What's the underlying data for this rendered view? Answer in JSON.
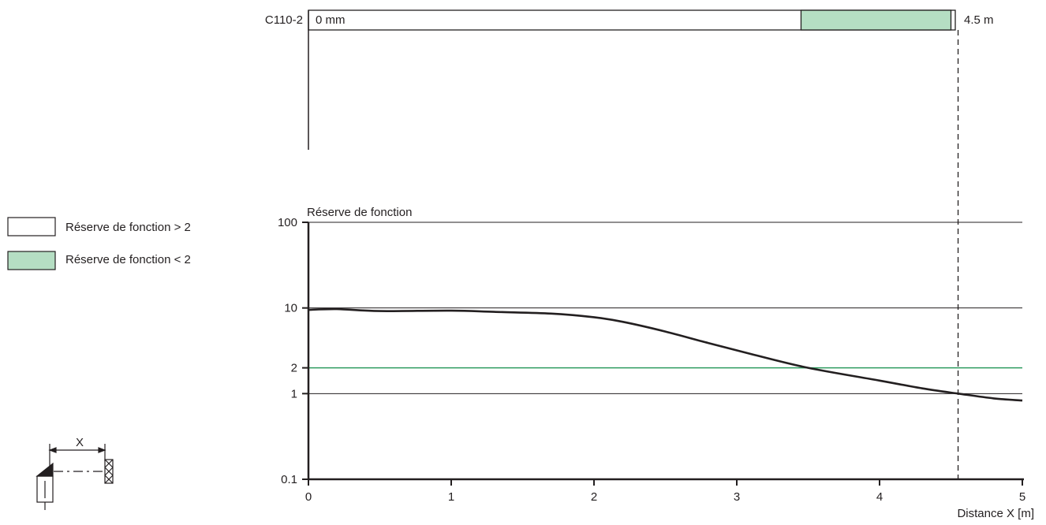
{
  "range_bar": {
    "label": "C110-2",
    "start_label": "0 mm",
    "end_label": "4.5 m",
    "full_range_m": 4.5,
    "reduced_from_m": 3.45
  },
  "legend": [
    {
      "label": "Réserve de fonction > 2",
      "color": "#ffffff"
    },
    {
      "label": "Réserve de fonction < 2",
      "color": "#b5dec3"
    }
  ],
  "sketch": {
    "distance_label": "X"
  },
  "chart_data": {
    "type": "line",
    "title": "",
    "ylabel": "Réserve de fonction",
    "xlabel": "Distance X [m]",
    "y_scale": "log",
    "xlim": [
      0,
      5
    ],
    "ylim": [
      0.1,
      100
    ],
    "x_ticks": [
      0,
      1,
      2,
      3,
      4,
      5
    ],
    "y_ticks": [
      {
        "value": 0.1,
        "label": "0.1"
      },
      {
        "value": 1,
        "label": "1"
      },
      {
        "value": 2,
        "label": "2"
      },
      {
        "value": 10,
        "label": "10"
      },
      {
        "value": 100,
        "label": "100"
      }
    ],
    "gridlines_y": [
      1,
      10,
      100
    ],
    "threshold": {
      "value": 2,
      "color": "#2e9b5f"
    },
    "reference_x": 4.55,
    "series": [
      {
        "color": "#231f20",
        "points": [
          [
            0,
            9.5
          ],
          [
            0.2,
            9.7
          ],
          [
            0.5,
            9.2
          ],
          [
            1.0,
            9.3
          ],
          [
            1.3,
            9.0
          ],
          [
            1.7,
            8.6
          ],
          [
            2.0,
            7.8
          ],
          [
            2.2,
            6.9
          ],
          [
            2.5,
            5.3
          ],
          [
            2.8,
            3.9
          ],
          [
            3.1,
            2.9
          ],
          [
            3.5,
            2.0
          ],
          [
            4.0,
            1.42
          ],
          [
            4.3,
            1.15
          ],
          [
            4.55,
            1.0
          ],
          [
            4.8,
            0.88
          ],
          [
            5.0,
            0.83
          ]
        ]
      }
    ]
  },
  "colors": {
    "ink": "#231f20",
    "reduced_fill": "#b5dec3",
    "threshold": "#2e9b5f"
  }
}
